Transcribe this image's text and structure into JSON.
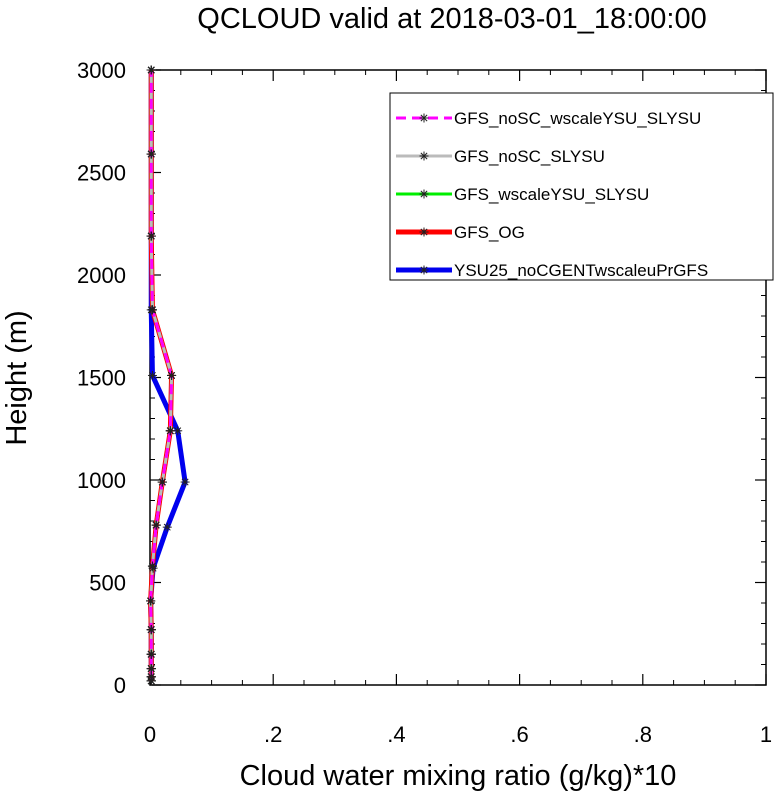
{
  "chart_data": {
    "type": "line",
    "title": "QCLOUD valid at 2018-03-01_18:00:00",
    "xlabel": "Cloud water mixing ratio (g/kg)*10",
    "ylabel": "Height (m)",
    "xlim": [
      0,
      1
    ],
    "ylim": [
      0,
      3000
    ],
    "x_ticks": [
      0,
      0.2,
      0.4,
      0.6,
      0.8,
      1
    ],
    "x_tick_labels": [
      "0",
      ".2",
      ".4",
      ".6",
      ".8",
      "1"
    ],
    "y_ticks": [
      0,
      500,
      1000,
      1500,
      2000,
      2500,
      3000
    ],
    "y_tick_labels": [
      "0",
      "500",
      "1000",
      "1500",
      "2000",
      "2500",
      "3000"
    ],
    "grid": false,
    "legend_position": "top-right",
    "series": [
      {
        "name": "GFS_noSC_wscaleYSU_SLYSU",
        "color": "#ff00ff",
        "dashed": true,
        "width": 3,
        "marker": "asterisk",
        "x": [
          0.002,
          0.002,
          0.002,
          0.002,
          0.002,
          0.001,
          0.004,
          0.01,
          0.02,
          0.033,
          0.035,
          0.004,
          0.002,
          0.002,
          0.002
        ],
        "y": [
          20,
          40,
          80,
          150,
          270,
          410,
          580,
          780,
          990,
          1240,
          1510,
          1830,
          2190,
          2590,
          3000
        ]
      },
      {
        "name": "GFS_noSC_SLYSU",
        "color": "#bbbbbb",
        "dashed": false,
        "width": 3,
        "marker": "asterisk",
        "x": [
          0.002,
          0.002,
          0.002,
          0.002,
          0.002,
          0.001,
          0.004,
          0.01,
          0.02,
          0.033,
          0.035,
          0.004,
          0.002,
          0.002,
          0.002
        ],
        "y": [
          20,
          40,
          80,
          150,
          270,
          410,
          580,
          780,
          990,
          1240,
          1510,
          1830,
          2190,
          2590,
          3000
        ]
      },
      {
        "name": "GFS_wscaleYSU_SLYSU",
        "color": "#00ee00",
        "dashed": false,
        "width": 3,
        "marker": "asterisk",
        "x": [
          0.002,
          0.002,
          0.002,
          0.002,
          0.002,
          0.001,
          0.004,
          0.01,
          0.02,
          0.033,
          0.035,
          0.004,
          0.002,
          0.002,
          0.002
        ],
        "y": [
          20,
          40,
          80,
          150,
          270,
          410,
          580,
          780,
          990,
          1240,
          1510,
          1830,
          2190,
          2590,
          3000
        ]
      },
      {
        "name": "GFS_OG",
        "color": "#ff0000",
        "dashed": false,
        "width": 5,
        "marker": "asterisk",
        "x": [
          0.002,
          0.002,
          0.002,
          0.002,
          0.002,
          0.001,
          0.004,
          0.01,
          0.02,
          0.033,
          0.035,
          0.004,
          0.002,
          0.002,
          0.002
        ],
        "y": [
          20,
          40,
          80,
          150,
          270,
          410,
          580,
          780,
          990,
          1240,
          1510,
          1830,
          2190,
          2590,
          3000
        ]
      },
      {
        "name": "YSU25_noCGENTwscaleuPrGFS",
        "color": "#0000ee",
        "dashed": false,
        "width": 5,
        "marker": "asterisk",
        "x": [
          0.002,
          0.002,
          0.002,
          0.002,
          0.002,
          0.001,
          0.005,
          0.028,
          0.057,
          0.045,
          0.004,
          0.002,
          0.002,
          0.002,
          0.002
        ],
        "y": [
          20,
          40,
          80,
          150,
          270,
          410,
          570,
          770,
          990,
          1240,
          1510,
          1830,
          2190,
          2590,
          3000
        ]
      }
    ]
  }
}
